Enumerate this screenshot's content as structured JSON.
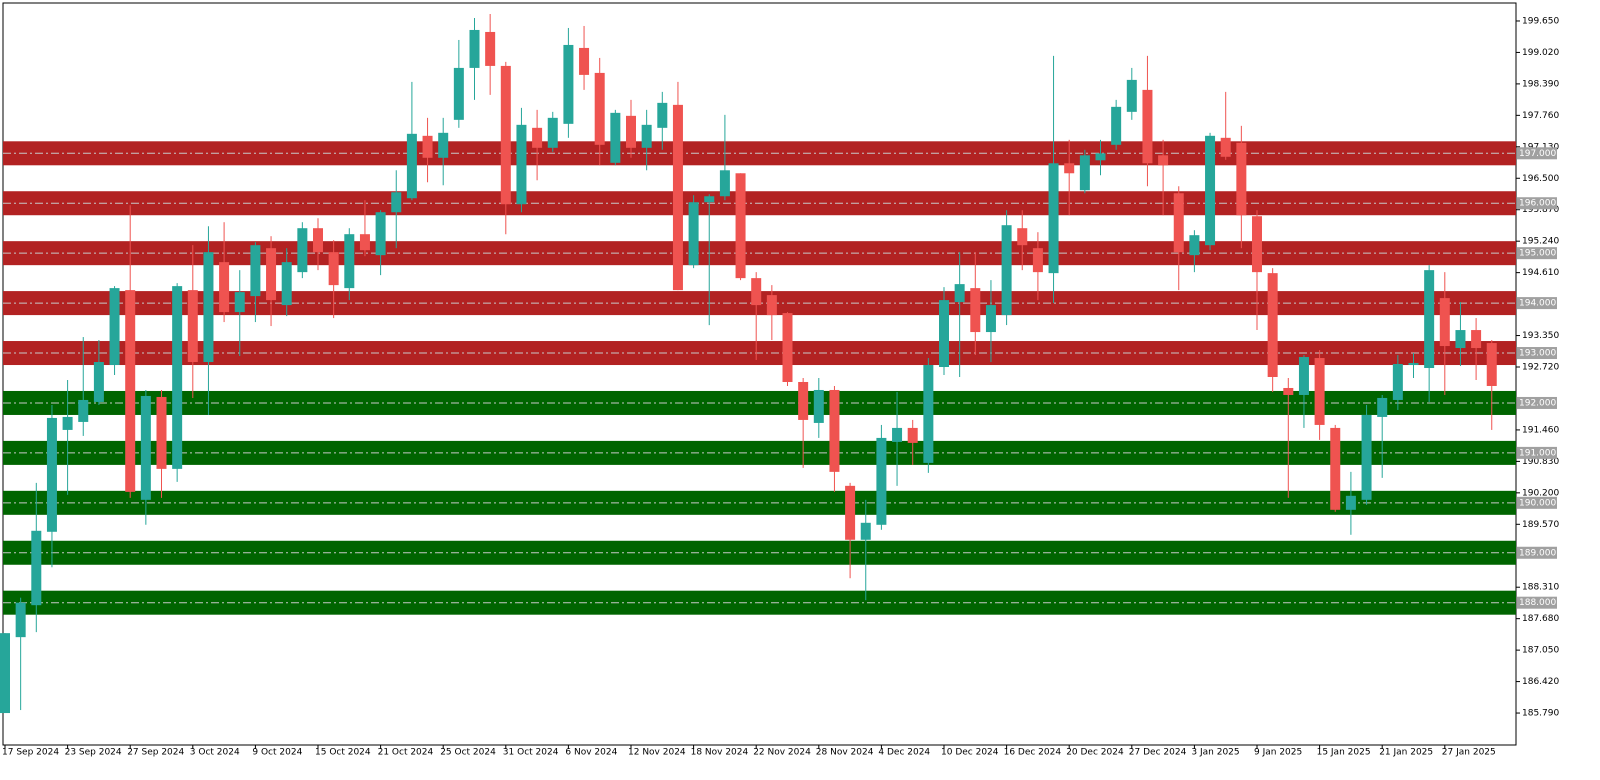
{
  "chart_data": {
    "type": "candlestick",
    "categories": [
      "17 Sep 2024",
      null,
      null,
      null,
      "23 Sep 2024",
      null,
      null,
      null,
      "27 Sep 2024",
      null,
      null,
      null,
      "3 Oct 2024",
      null,
      null,
      null,
      "9 Oct 2024",
      null,
      null,
      null,
      "15 Oct 2024",
      null,
      null,
      null,
      "21 Oct 2024",
      null,
      null,
      null,
      "25 Oct 2024",
      null,
      null,
      null,
      "31 Oct 2024",
      null,
      null,
      null,
      "6 Nov 2024",
      null,
      null,
      null,
      "12 Nov 2024",
      null,
      null,
      null,
      "18 Nov 2024",
      null,
      null,
      null,
      "22 Nov 2024",
      null,
      null,
      null,
      "28 Nov 2024",
      null,
      null,
      null,
      "4 Dec 2024",
      null,
      null,
      null,
      "10 Dec 2024",
      null,
      null,
      null,
      "16 Dec 2024",
      null,
      null,
      null,
      "20 Dec 2024",
      null,
      null,
      null,
      "27 Dec 2024",
      null,
      null,
      null,
      "3 Jan 2025",
      null,
      null,
      null,
      "9 Jan 2025",
      null,
      null,
      null,
      "15 Jan 2025",
      null,
      null,
      null,
      "21 Jan 2025",
      null,
      null,
      null,
      "27 Jan 2025",
      null,
      null,
      null
    ],
    "open": [
      185.79,
      187.31,
      187.95,
      189.42,
      191.46,
      191.62,
      192.02,
      192.76,
      194.26,
      190.06,
      192.12,
      190.68,
      194.26,
      192.82,
      194.82,
      193.82,
      194.14,
      195.1,
      193.96,
      194.62,
      195.5,
      195.02,
      194.3,
      195.38,
      194.96,
      195.82,
      196.1,
      197.35,
      196.91,
      197.67,
      198.71,
      199.43,
      198.75,
      195.98,
      197.51,
      197.11,
      197.59,
      199.11,
      198.61,
      196.81,
      197.75,
      197.11,
      197.51,
      197.97,
      194.76,
      196.02,
      196.14,
      196.6,
      194.5,
      194.16,
      193.8,
      192.42,
      191.6,
      192.26,
      190.34,
      189.26,
      189.56,
      191.22,
      191.5,
      190.8,
      192.72,
      194.02,
      194.3,
      193.42,
      193.76,
      195.5,
      195.1,
      194.6,
      196.8,
      196.26,
      196.86,
      197.17,
      197.83,
      198.27,
      196.96,
      196.2,
      194.96,
      195.16,
      197.31,
      197.21,
      195.74,
      194.6,
      192.3,
      192.16,
      192.9,
      191.5,
      189.86,
      190.06,
      191.72,
      192.06,
      192.76,
      192.7,
      194.1,
      193.1,
      193.46,
      193.2
    ],
    "high": [
      187.39,
      188.1,
      190.4,
      191.96,
      192.46,
      193.32,
      193.26,
      194.34,
      195.96,
      192.26,
      192.26,
      194.4,
      195.16,
      195.54,
      195.62,
      194.66,
      195.22,
      195.34,
      195.1,
      195.62,
      195.7,
      195.26,
      195.5,
      196.06,
      195.86,
      196.66,
      198.43,
      197.71,
      197.71,
      199.27,
      199.71,
      199.79,
      198.83,
      197.91,
      197.87,
      197.83,
      199.51,
      199.55,
      198.91,
      197.87,
      198.07,
      197.87,
      198.23,
      198.43,
      196.16,
      196.18,
      197.77,
      196.6,
      194.62,
      194.36,
      193.82,
      192.5,
      192.5,
      192.34,
      190.4,
      190.06,
      191.56,
      192.22,
      191.66,
      192.9,
      194.32,
      195.02,
      195.02,
      194.46,
      195.86,
      195.86,
      195.42,
      198.95,
      197.27,
      197.07,
      197.27,
      198.07,
      198.71,
      198.95,
      197.27,
      196.34,
      195.46,
      197.41,
      198.23,
      197.55,
      195.86,
      194.7,
      192.5,
      192.96,
      193.06,
      191.56,
      190.62,
      191.96,
      192.16,
      192.96,
      193.0,
      194.76,
      194.62,
      194.02,
      193.7,
      193.26
    ],
    "low": [
      185.79,
      185.85,
      187.41,
      188.71,
      190.16,
      191.34,
      191.96,
      192.56,
      190.1,
      189.56,
      190.1,
      190.42,
      192.1,
      191.76,
      193.62,
      192.94,
      193.62,
      193.54,
      193.74,
      194.5,
      194.66,
      193.7,
      194.06,
      194.94,
      194.56,
      195.1,
      196.06,
      196.42,
      196.36,
      197.51,
      198.07,
      198.17,
      195.38,
      195.82,
      196.46,
      197.03,
      197.31,
      198.27,
      196.76,
      196.76,
      196.91,
      196.66,
      197.07,
      194.26,
      194.7,
      193.56,
      196.06,
      194.46,
      192.86,
      193.26,
      192.34,
      190.7,
      191.3,
      190.22,
      188.49,
      188.05,
      189.46,
      190.34,
      190.76,
      190.6,
      192.56,
      192.52,
      192.96,
      192.82,
      193.56,
      194.66,
      194.06,
      194.0,
      195.76,
      196.2,
      196.56,
      197.07,
      197.67,
      196.34,
      195.76,
      194.26,
      194.62,
      195.06,
      196.87,
      195.1,
      193.46,
      192.22,
      190.1,
      191.5,
      191.26,
      189.82,
      189.36,
      189.96,
      190.5,
      191.86,
      192.5,
      192.02,
      192.16,
      192.74,
      192.46,
      191.46
    ],
    "close": [
      187.39,
      188.0,
      189.44,
      191.7,
      191.72,
      192.06,
      192.82,
      194.3,
      190.22,
      192.14,
      190.68,
      194.34,
      192.82,
      195.02,
      193.82,
      194.22,
      195.16,
      194.06,
      194.82,
      195.5,
      195.02,
      194.36,
      195.38,
      195.06,
      195.82,
      196.22,
      197.39,
      196.91,
      197.41,
      198.71,
      199.47,
      198.75,
      195.98,
      197.57,
      197.11,
      197.71,
      199.17,
      198.57,
      197.17,
      197.81,
      197.11,
      197.57,
      198.01,
      194.26,
      196.02,
      196.14,
      196.66,
      194.5,
      193.96,
      193.76,
      192.42,
      191.66,
      192.26,
      190.62,
      189.26,
      189.6,
      191.3,
      191.5,
      191.2,
      192.76,
      194.06,
      194.38,
      193.42,
      193.96,
      195.56,
      195.16,
      194.62,
      196.8,
      196.6,
      196.96,
      197.0,
      197.93,
      198.47,
      196.8,
      196.76,
      195.02,
      195.36,
      197.35,
      196.93,
      195.76,
      194.62,
      192.52,
      192.16,
      192.92,
      191.56,
      189.86,
      190.14,
      191.76,
      192.1,
      192.78,
      192.8,
      194.66,
      193.14,
      193.46,
      193.1,
      192.34
    ],
    "up_color": "#26a69a",
    "down_color": "#ef5350",
    "ylim": [
      185.15,
      200.01
    ],
    "yticks": [
      {
        "value": 199.65,
        "label": "199.650"
      },
      {
        "value": 199.02,
        "label": "199.020"
      },
      {
        "value": 198.39,
        "label": "198.390"
      },
      {
        "value": 197.76,
        "label": "197.760"
      },
      {
        "value": 197.13,
        "label": "197.130"
      },
      {
        "value": 196.5,
        "label": "196.500"
      },
      {
        "value": 195.87,
        "label": "195.870"
      },
      {
        "value": 195.24,
        "label": "195.240"
      },
      {
        "value": 194.61,
        "label": "194.610"
      },
      {
        "value": 193.35,
        "label": "193.350"
      },
      {
        "value": 192.72,
        "label": "192.720"
      },
      {
        "value": 191.46,
        "label": "191.460"
      },
      {
        "value": 190.83,
        "label": "190.830"
      },
      {
        "value": 190.2,
        "label": "190.200"
      },
      {
        "value": 189.57,
        "label": "189.570"
      },
      {
        "value": 188.31,
        "label": "188.310"
      },
      {
        "value": 187.68,
        "label": "187.680"
      },
      {
        "value": 187.05,
        "label": "187.050"
      },
      {
        "value": 186.42,
        "label": "186.420"
      },
      {
        "value": 185.79,
        "label": "185.790"
      }
    ],
    "levels": [
      {
        "value": 197,
        "label": "197.000",
        "color": "#b22222"
      },
      {
        "value": 196,
        "label": "196.000",
        "color": "#b22222"
      },
      {
        "value": 195,
        "label": "195.000",
        "color": "#b22222"
      },
      {
        "value": 194,
        "label": "194.000",
        "color": "#b22222"
      },
      {
        "value": 193,
        "label": "193.000",
        "color": "#b22222"
      },
      {
        "value": 192,
        "label": "192.000",
        "color": "#006400"
      },
      {
        "value": 191,
        "label": "191.000",
        "color": "#006400"
      },
      {
        "value": 190,
        "label": "190.000",
        "color": "#006400"
      },
      {
        "value": 189,
        "label": "189.000",
        "color": "#006400"
      },
      {
        "value": 188,
        "label": "188.000",
        "color": "#006400"
      }
    ]
  }
}
